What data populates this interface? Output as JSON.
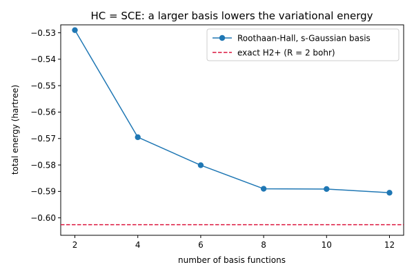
{
  "chart_data": {
    "type": "line",
    "title": "HC = SCE: a larger basis lowers the variational energy",
    "xlabel": "number of basis functions",
    "ylabel": "total energy (hartree)",
    "xlim": [
      1.55,
      12.45
    ],
    "ylim": [
      -0.6066,
      -0.527
    ],
    "xticks": [
      2,
      4,
      6,
      8,
      10,
      12
    ],
    "xtick_labels": [
      "2",
      "4",
      "6",
      "8",
      "10",
      "12"
    ],
    "yticks": [
      -0.53,
      -0.54,
      -0.55,
      -0.56,
      -0.57,
      -0.58,
      -0.59,
      -0.6
    ],
    "ytick_labels": [
      "−0.53",
      "−0.54",
      "−0.55",
      "−0.56",
      "−0.57",
      "−0.58",
      "−0.59",
      "−0.60"
    ],
    "grid": false,
    "legend_position": "top-right",
    "series": [
      {
        "name": "Roothaan-Hall, s-Gaussian basis",
        "color": "#1f77b4",
        "marker": "circle",
        "x": [
          2,
          4,
          6,
          8,
          10,
          12
        ],
        "y": [
          -0.529,
          -0.5695,
          -0.5801,
          -0.589,
          -0.5891,
          -0.5905
        ]
      }
    ],
    "reference_lines": [
      {
        "name": "exact H2+ (R = 2 bohr)",
        "color": "#dc143c",
        "style": "dashed",
        "y": -0.6026
      }
    ]
  }
}
